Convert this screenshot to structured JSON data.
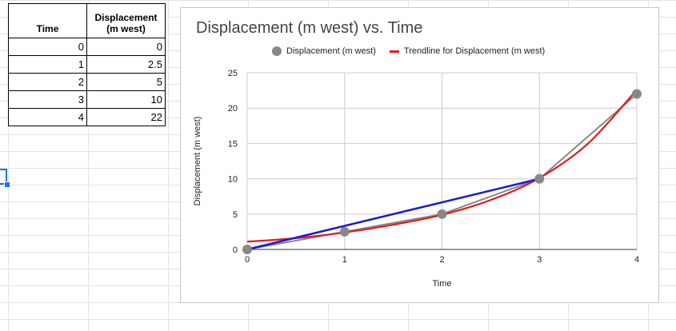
{
  "table": {
    "headers": {
      "time": "Time",
      "disp_line1": "Displacement",
      "disp_line2": "(m west)"
    },
    "rows": [
      {
        "time": "0",
        "disp": "0"
      },
      {
        "time": "1",
        "disp": "2.5"
      },
      {
        "time": "2",
        "disp": "5"
      },
      {
        "time": "3",
        "disp": "10"
      },
      {
        "time": "4",
        "disp": "22"
      }
    ]
  },
  "chart_data": {
    "type": "scatter",
    "title": "Displacement (m west) vs. Time",
    "xlabel": "Time",
    "ylabel": "Displacement (m west)",
    "xlim": [
      0,
      4
    ],
    "ylim": [
      0,
      25
    ],
    "x_ticks": [
      "0",
      "1",
      "2",
      "3",
      "4"
    ],
    "y_ticks": [
      "0",
      "5",
      "10",
      "15",
      "20",
      "25"
    ],
    "grid": true,
    "legend_position": "top",
    "series": [
      {
        "name": "Displacement (m west)",
        "x": [
          0,
          1,
          2,
          3,
          4
        ],
        "y": [
          0,
          2.5,
          5,
          10,
          22
        ],
        "color": "#888888",
        "style": "points connected by line"
      },
      {
        "name": "Trendline for Displacement (m west)",
        "color": "#e31a1a",
        "style": "smooth curve",
        "x": [
          0,
          0.5,
          1,
          1.5,
          2,
          2.5,
          3,
          3.5,
          4
        ],
        "y": [
          1.1,
          1.6,
          2.4,
          3.5,
          4.9,
          7.0,
          10.1,
          15.0,
          22.6
        ]
      },
      {
        "color": "#1a1ad4",
        "style": "straight line",
        "x": [
          0,
          3
        ],
        "y": [
          0,
          10
        ]
      }
    ]
  }
}
